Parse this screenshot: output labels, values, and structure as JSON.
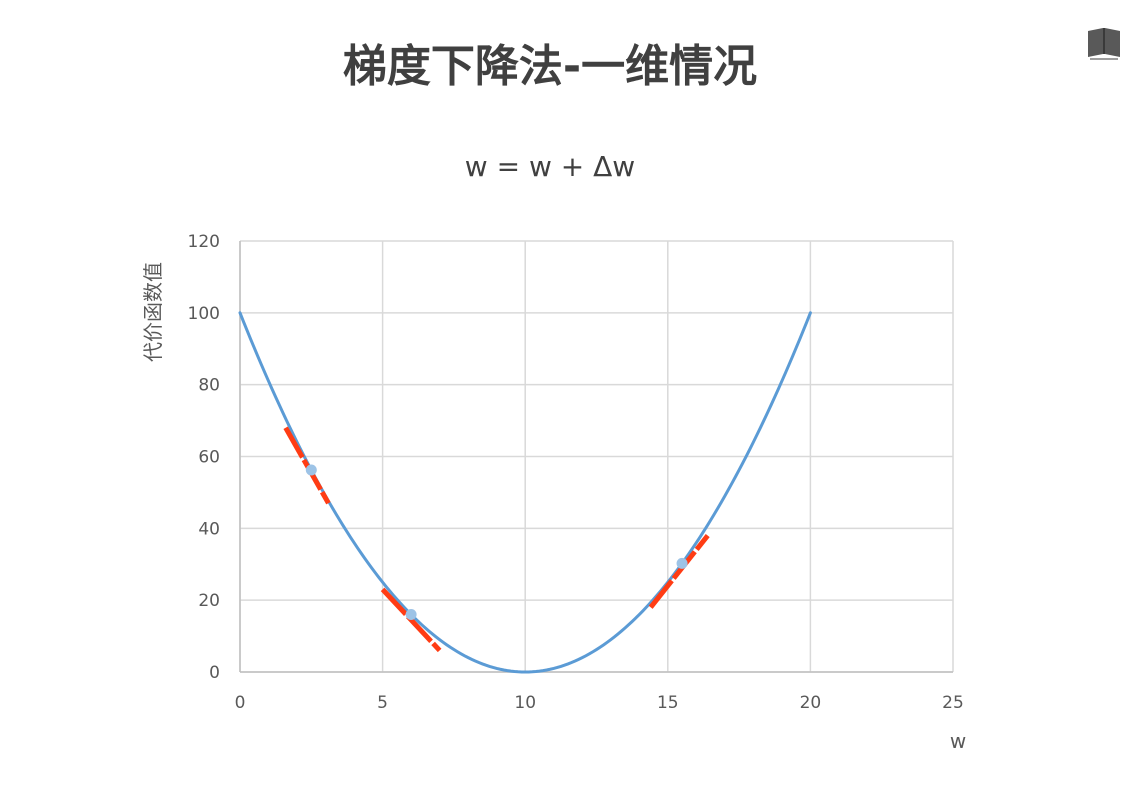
{
  "slide": {
    "title": "梯度下降法-一维情况",
    "formula": "w = w + Δw"
  },
  "icons": {
    "top_right": "book-icon"
  },
  "chart_data": {
    "type": "line",
    "x": [
      0,
      1,
      2,
      3,
      4,
      5,
      6,
      7,
      8,
      9,
      10,
      11,
      12,
      13,
      14,
      15,
      16,
      17,
      18,
      19,
      20
    ],
    "series": [
      {
        "values": [
          100,
          81,
          64,
          49,
          36,
          25,
          16,
          9,
          4,
          1,
          0,
          1,
          4,
          9,
          16,
          25,
          36,
          49,
          64,
          81,
          100
        ]
      }
    ],
    "points": [
      {
        "x": 2.5,
        "y": 56.25
      },
      {
        "x": 6.0,
        "y": 16.0
      },
      {
        "x": 15.5,
        "y": 30.25
      }
    ],
    "tangent_segments": [
      {
        "x1": 1.6,
        "y1": 68,
        "x2": 3.1,
        "y2": 47
      },
      {
        "x1": 5.0,
        "y1": 23,
        "x2": 7.0,
        "y2": 6
      },
      {
        "x1": 14.4,
        "y1": 18,
        "x2": 16.4,
        "y2": 38
      }
    ],
    "xlim": [
      0,
      25
    ],
    "ylim": [
      0,
      120
    ],
    "xticks": [
      0,
      5,
      10,
      15,
      20,
      25
    ],
    "yticks": [
      0,
      20,
      40,
      60,
      80,
      100,
      120
    ],
    "xlabel": "w",
    "ylabel": "代价函数值",
    "grid": true,
    "line_color": "#5b9bd5",
    "point_color": "#9dc3e6",
    "tangent_color": "#ff3c14",
    "grid_color": "#d9d9d9"
  }
}
